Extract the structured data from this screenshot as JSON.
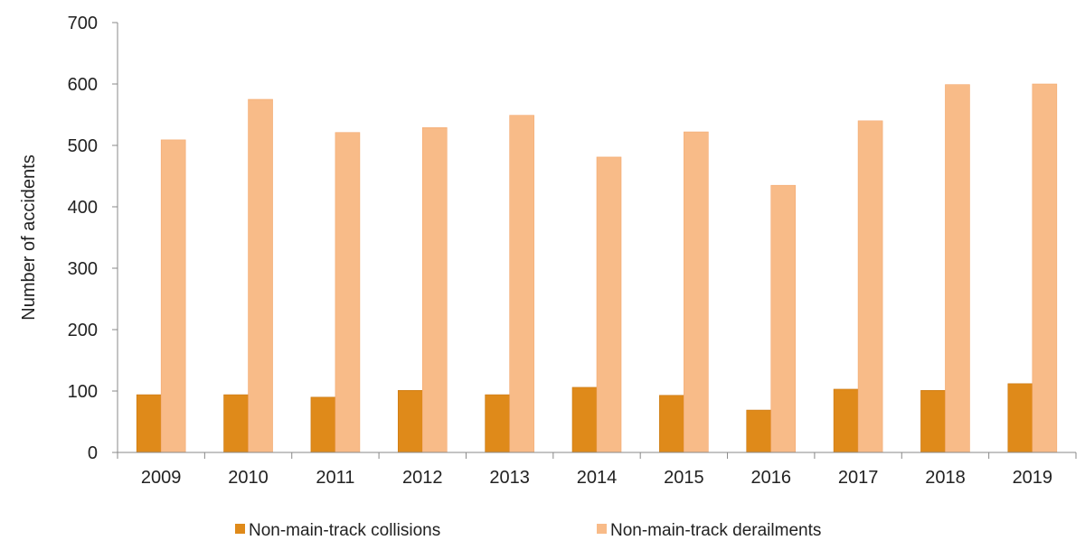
{
  "chart_data": {
    "type": "bar",
    "title": "",
    "xlabel": "",
    "ylabel": "Number of accidents",
    "ylim": [
      0,
      700
    ],
    "yticks": [
      0,
      100,
      200,
      300,
      400,
      500,
      600,
      700
    ],
    "categories": [
      "2009",
      "2010",
      "2011",
      "2012",
      "2013",
      "2014",
      "2015",
      "2016",
      "2017",
      "2018",
      "2019"
    ],
    "series": [
      {
        "name": "Non-main-track collisions",
        "color": "#df8a1a",
        "values": [
          94,
          94,
          90,
          101,
          94,
          106,
          93,
          69,
          103,
          101,
          112
        ]
      },
      {
        "name": "Non-main-track derailments",
        "color": "#f8bb88",
        "values": [
          509,
          575,
          521,
          529,
          549,
          481,
          522,
          435,
          540,
          599,
          600
        ]
      }
    ],
    "legend": "bottom",
    "grid": false
  }
}
